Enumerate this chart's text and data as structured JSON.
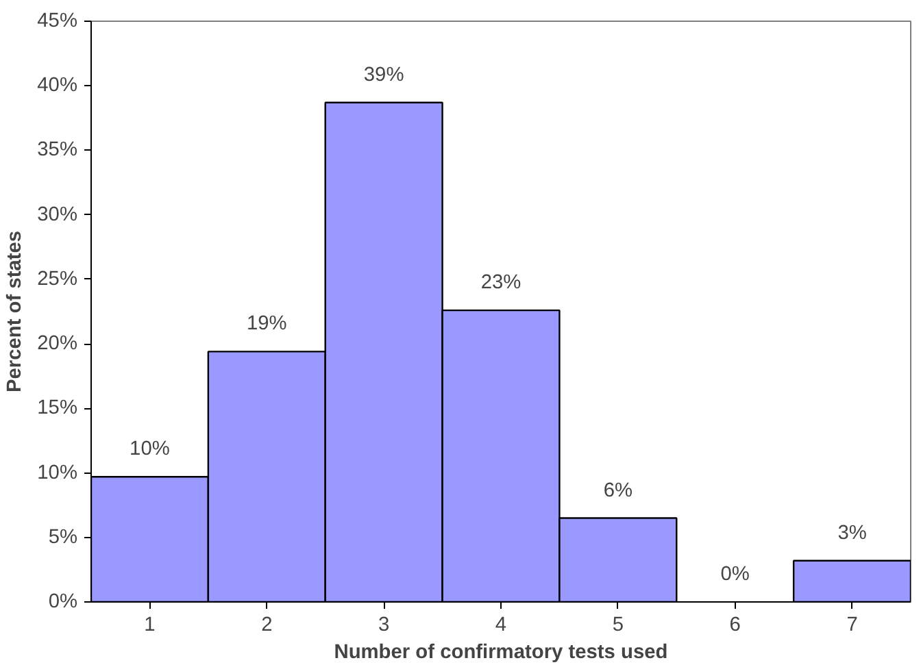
{
  "chart_data": {
    "type": "bar",
    "xlabel": "Number of confirmatory tests used",
    "ylabel": "Percent of states",
    "categories": [
      "1",
      "2",
      "3",
      "4",
      "5",
      "6",
      "7"
    ],
    "values": [
      9.7,
      19.4,
      38.7,
      22.6,
      6.5,
      0,
      3.2
    ],
    "value_labels": [
      "10%",
      "19%",
      "39%",
      "23%",
      "6%",
      "0%",
      "3%"
    ],
    "color": "#9999ff",
    "ylim": [
      0,
      45
    ],
    "yticks": [
      {
        "value": 0,
        "label": "0%"
      },
      {
        "value": 5,
        "label": "5%"
      },
      {
        "value": 10,
        "label": "10%"
      },
      {
        "value": 15,
        "label": "15%"
      },
      {
        "value": 20,
        "label": "20%"
      },
      {
        "value": 25,
        "label": "25%"
      },
      {
        "value": 30,
        "label": "30%"
      },
      {
        "value": 35,
        "label": "35%"
      },
      {
        "value": 40,
        "label": "40%"
      },
      {
        "value": 45,
        "label": "45%"
      }
    ],
    "grid": false
  }
}
